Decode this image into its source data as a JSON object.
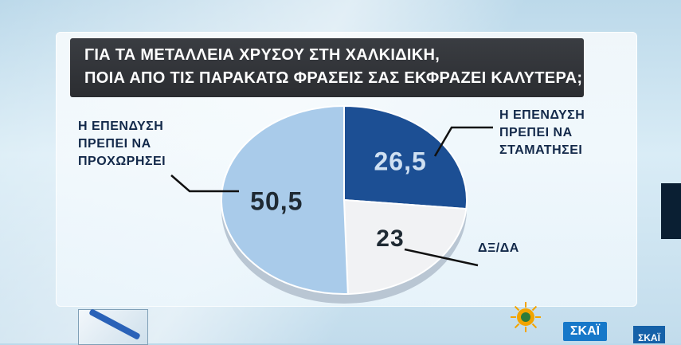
{
  "header": {
    "title_line1": "ΓΙΑ ΤΑ ΜΕΤΑΛΛΕΙΑ ΧΡΥΣΟΥ ΣΤΗ ΧΑΛΚΙΔΙΚΗ,",
    "title_line2": "ΠΟΙΑ ΑΠΟ ΤΙΣ ΠΑΡΑΚΑΤΩ ΦΡΑΣΕΙΣ ΣΑΣ ΕΚΦΡΑΖΕΙ ΚΑΛΥΤΕΡΑ;"
  },
  "chart_data": {
    "type": "pie",
    "title": "ΓΙΑ ΤΑ ΜΕΤΑΛΛΕΙΑ ΧΡΥΣΟΥ ΣΤΗ ΧΑΛΚΙΔΙΚΗ, ΠΟΙΑ ΑΠΟ ΤΙΣ ΠΑΡΑΚΑΤΩ ΦΡΑΣΕΙΣ ΣΑΣ ΕΚΦΡΑΖΕΙ ΚΑΛΥΤΕΡΑ;",
    "slices": [
      {
        "label_lines": [
          "Η ΕΠΕΝΔΥΣΗ",
          "ΠΡΕΠΕΙ ΝΑ",
          "ΣΤΑΜΑΤΗΣΕΙ"
        ],
        "value": 26.5,
        "value_text": "26,5",
        "color": "#1c4f94"
      },
      {
        "label_lines": [
          "ΔΞ/ΔΑ"
        ],
        "value": 23,
        "value_text": "23",
        "color": "#f1f2f4"
      },
      {
        "label_lines": [
          "Η ΕΠΕΝΔΥΣΗ",
          "ΠΡΕΠΕΙ ΝΑ",
          "ΠΡΟΧΩΡΗΣΕΙ"
        ],
        "value": 50.5,
        "value_text": "50,5",
        "color": "#a9cbea"
      }
    ],
    "legend": "none"
  },
  "logos": {
    "skai": "ΣΚΑΪ",
    "skai_corner": "ΣΚΑΪ",
    "sun_icon": "sun-logo-icon"
  }
}
